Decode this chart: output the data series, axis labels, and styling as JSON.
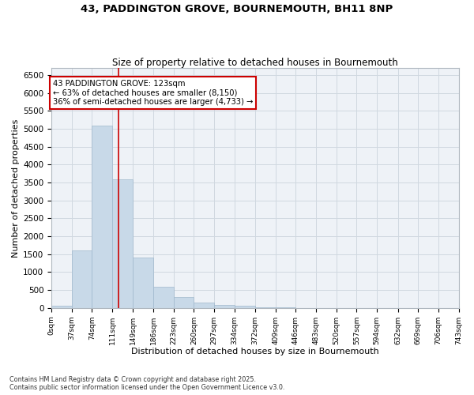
{
  "title_line1": "43, PADDINGTON GROVE, BOURNEMOUTH, BH11 8NP",
  "title_line2": "Size of property relative to detached houses in Bournemouth",
  "xlabel": "Distribution of detached houses by size in Bournemouth",
  "ylabel": "Number of detached properties",
  "bar_edges": [
    0,
    37,
    74,
    111,
    149,
    186,
    223,
    260,
    297,
    334,
    372,
    409,
    446,
    483,
    520,
    557,
    594,
    632,
    669,
    706,
    743
  ],
  "bar_heights": [
    50,
    1600,
    5100,
    3600,
    1400,
    600,
    300,
    150,
    80,
    50,
    20,
    10,
    5,
    3,
    2,
    1,
    1,
    0,
    0,
    0
  ],
  "bar_color": "#c8d9e8",
  "bar_edgecolor": "#a0b8cc",
  "property_size": 123,
  "vline_color": "#cc0000",
  "annotation_title": "43 PADDINGTON GROVE: 123sqm",
  "annotation_line1": "← 63% of detached houses are smaller (8,150)",
  "annotation_line2": "36% of semi-detached houses are larger (4,733) →",
  "annotation_box_color": "#cc0000",
  "ylim": [
    0,
    6700
  ],
  "yticks": [
    0,
    500,
    1000,
    1500,
    2000,
    2500,
    3000,
    3500,
    4000,
    4500,
    5000,
    5500,
    6000,
    6500
  ],
  "xtick_labels": [
    "0sqm",
    "37sqm",
    "74sqm",
    "111sqm",
    "149sqm",
    "186sqm",
    "223sqm",
    "260sqm",
    "297sqm",
    "334sqm",
    "372sqm",
    "409sqm",
    "446sqm",
    "483sqm",
    "520sqm",
    "557sqm",
    "594sqm",
    "632sqm",
    "669sqm",
    "706sqm",
    "743sqm"
  ],
  "grid_color": "#d0d8e0",
  "bg_color": "#eef2f7",
  "fig_bg_color": "#ffffff",
  "footnote1": "Contains HM Land Registry data © Crown copyright and database right 2025.",
  "footnote2": "Contains public sector information licensed under the Open Government Licence v3.0."
}
